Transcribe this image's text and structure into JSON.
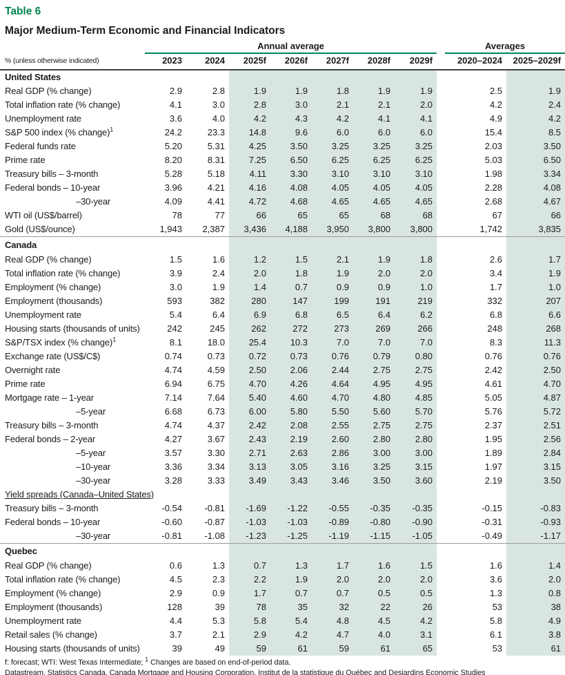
{
  "table_label": "Table 6",
  "title": "Major Medium-Term Economic and Financial Indicators",
  "colors": {
    "accent": "#00874E",
    "band": "#D9E6DF",
    "rule_dark": "#3f3f3f",
    "divider": "#9b9b9b"
  },
  "header": {
    "unit_label": "% (unless otherwise indicated)",
    "group_annual": "Annual average",
    "group_averages": "Averages",
    "years": [
      "2023",
      "2024",
      "2025f",
      "2026f",
      "2027f",
      "2028f",
      "2029f"
    ],
    "avg_columns": [
      "2020–2024",
      "2025–2029f"
    ]
  },
  "sections": [
    {
      "name": "United States",
      "divider": false,
      "subsection": false,
      "rows": [
        {
          "label": "Real GDP (% change)",
          "values": [
            "2.9",
            "2.8",
            "1.9",
            "1.9",
            "1.8",
            "1.9",
            "1.9",
            "2.5",
            "1.9"
          ]
        },
        {
          "label": "Total inflation rate (% change)",
          "values": [
            "4.1",
            "3.0",
            "2.8",
            "3.0",
            "2.1",
            "2.1",
            "2.0",
            "4.2",
            "2.4"
          ]
        },
        {
          "label": "Unemployment rate",
          "values": [
            "3.6",
            "4.0",
            "4.2",
            "4.3",
            "4.2",
            "4.1",
            "4.1",
            "4.9",
            "4.2"
          ]
        },
        {
          "label": "S&P 500 index (% change)",
          "sup": "1",
          "values": [
            "24.2",
            "23.3",
            "14.8",
            "9.6",
            "6.0",
            "6.0",
            "6.0",
            "15.4",
            "8.5"
          ]
        },
        {
          "label": "Federal funds rate",
          "values": [
            "5.20",
            "5.31",
            "4.25",
            "3.50",
            "3.25",
            "3.25",
            "3.25",
            "2.03",
            "3.50"
          ]
        },
        {
          "label": "Prime rate",
          "values": [
            "8.20",
            "8.31",
            "7.25",
            "6.50",
            "6.25",
            "6.25",
            "6.25",
            "5.03",
            "6.50"
          ]
        },
        {
          "label": "Treasury bills – 3-month",
          "values": [
            "5.28",
            "5.18",
            "4.11",
            "3.30",
            "3.10",
            "3.10",
            "3.10",
            "1.98",
            "3.34"
          ]
        },
        {
          "label": "Federal bonds – 10-year",
          "values": [
            "3.96",
            "4.21",
            "4.16",
            "4.08",
            "4.05",
            "4.05",
            "4.05",
            "2.28",
            "4.08"
          ]
        },
        {
          "label": "–30-year",
          "indent": true,
          "values": [
            "4.09",
            "4.41",
            "4.72",
            "4.68",
            "4.65",
            "4.65",
            "4.65",
            "2.68",
            "4.67"
          ]
        },
        {
          "label": "WTI oil (US$/barrel)",
          "values": [
            "78",
            "77",
            "66",
            "65",
            "65",
            "68",
            "68",
            "67",
            "66"
          ]
        },
        {
          "label": "Gold (US$/ounce)",
          "values": [
            "1,943",
            "2,387",
            "3,436",
            "4,188",
            "3,950",
            "3,800",
            "3,800",
            "1,742",
            "3,835"
          ]
        }
      ]
    },
    {
      "name": "Canada",
      "divider": true,
      "subsection": false,
      "rows": [
        {
          "label": "Real GDP (% change)",
          "values": [
            "1.5",
            "1.6",
            "1.2",
            "1.5",
            "2.1",
            "1.9",
            "1.8",
            "2.6",
            "1.7"
          ]
        },
        {
          "label": "Total inflation rate (% change)",
          "values": [
            "3.9",
            "2.4",
            "2.0",
            "1.8",
            "1.9",
            "2.0",
            "2.0",
            "3.4",
            "1.9"
          ]
        },
        {
          "label": "Employment (% change)",
          "values": [
            "3.0",
            "1.9",
            "1.4",
            "0.7",
            "0.9",
            "0.9",
            "1.0",
            "1.7",
            "1.0"
          ]
        },
        {
          "label": "Employment (thousands)",
          "values": [
            "593",
            "382",
            "280",
            "147",
            "199",
            "191",
            "219",
            "332",
            "207"
          ]
        },
        {
          "label": "Unemployment rate",
          "values": [
            "5.4",
            "6.4",
            "6.9",
            "6.8",
            "6.5",
            "6.4",
            "6.2",
            "6.8",
            "6.6"
          ]
        },
        {
          "label": "Housing starts (thousands of units)",
          "values": [
            "242",
            "245",
            "262",
            "272",
            "273",
            "269",
            "266",
            "248",
            "268"
          ]
        },
        {
          "label": "S&P/TSX index (% change)",
          "sup": "1",
          "values": [
            "8.1",
            "18.0",
            "25.4",
            "10.3",
            "7.0",
            "7.0",
            "7.0",
            "8.3",
            "11.3"
          ]
        },
        {
          "label": "Exchange rate (US$/C$)",
          "values": [
            "0.74",
            "0.73",
            "0.72",
            "0.73",
            "0.76",
            "0.79",
            "0.80",
            "0.76",
            "0.76"
          ]
        },
        {
          "label": "Overnight rate",
          "values": [
            "4.74",
            "4.59",
            "2.50",
            "2.06",
            "2.44",
            "2.75",
            "2.75",
            "2.42",
            "2.50"
          ]
        },
        {
          "label": "Prime rate",
          "values": [
            "6.94",
            "6.75",
            "4.70",
            "4.26",
            "4.64",
            "4.95",
            "4.95",
            "4.61",
            "4.70"
          ]
        },
        {
          "label": "Mortgage rate – 1-year",
          "values": [
            "7.14",
            "7.64",
            "5.40",
            "4.60",
            "4.70",
            "4.80",
            "4.85",
            "5.05",
            "4.87"
          ]
        },
        {
          "label": "–5-year",
          "indent": true,
          "values": [
            "6.68",
            "6.73",
            "6.00",
            "5.80",
            "5.50",
            "5.60",
            "5.70",
            "5.76",
            "5.72"
          ]
        },
        {
          "label": "Treasury bills – 3-month",
          "values": [
            "4.74",
            "4.37",
            "2.42",
            "2.08",
            "2.55",
            "2.75",
            "2.75",
            "2.37",
            "2.51"
          ]
        },
        {
          "label": "Federal bonds – 2-year",
          "values": [
            "4.27",
            "3.67",
            "2.43",
            "2.19",
            "2.60",
            "2.80",
            "2.80",
            "1.95",
            "2.56"
          ]
        },
        {
          "label": "–5-year",
          "indent": true,
          "values": [
            "3.57",
            "3.30",
            "2.71",
            "2.63",
            "2.86",
            "3.00",
            "3.00",
            "1.89",
            "2.84"
          ]
        },
        {
          "label": "–10-year",
          "indent": true,
          "values": [
            "3.36",
            "3.34",
            "3.13",
            "3.05",
            "3.16",
            "3.25",
            "3.15",
            "1.97",
            "3.15"
          ]
        },
        {
          "label": "–30-year",
          "indent": true,
          "values": [
            "3.28",
            "3.33",
            "3.49",
            "3.43",
            "3.46",
            "3.50",
            "3.60",
            "2.19",
            "3.50"
          ]
        }
      ]
    },
    {
      "name": "Yield spreads (Canada–United States)",
      "divider": false,
      "subsection": true,
      "rows": [
        {
          "label": "Treasury bills – 3-month",
          "values": [
            "-0.54",
            "-0.81",
            "-1.69",
            "-1.22",
            "-0.55",
            "-0.35",
            "-0.35",
            "-0.15",
            "-0.83"
          ]
        },
        {
          "label": "Federal bonds – 10-year",
          "values": [
            "-0.60",
            "-0.87",
            "-1.03",
            "-1.03",
            "-0.89",
            "-0.80",
            "-0.90",
            "-0.31",
            "-0.93"
          ]
        },
        {
          "label": "–30-year",
          "indent": true,
          "values": [
            "-0.81",
            "-1.08",
            "-1.23",
            "-1.25",
            "-1.19",
            "-1.15",
            "-1.05",
            "-0.49",
            "-1.17"
          ]
        }
      ]
    },
    {
      "name": "Quebec",
      "divider": true,
      "subsection": false,
      "rows": [
        {
          "label": "Real GDP (% change)",
          "values": [
            "0.6",
            "1.3",
            "0.7",
            "1.3",
            "1.7",
            "1.6",
            "1.5",
            "1.6",
            "1.4"
          ]
        },
        {
          "label": "Total inflation rate (% change)",
          "values": [
            "4.5",
            "2.3",
            "2.2",
            "1.9",
            "2.0",
            "2.0",
            "2.0",
            "3.6",
            "2.0"
          ]
        },
        {
          "label": "Employment (% change)",
          "values": [
            "2.9",
            "0.9",
            "1.7",
            "0.7",
            "0.7",
            "0.5",
            "0.5",
            "1.3",
            "0.8"
          ]
        },
        {
          "label": "Employment (thousands)",
          "values": [
            "128",
            "39",
            "78",
            "35",
            "32",
            "22",
            "26",
            "53",
            "38"
          ]
        },
        {
          "label": "Unemployment rate",
          "values": [
            "4.4",
            "5.3",
            "5.8",
            "5.4",
            "4.8",
            "4.5",
            "4.2",
            "5.8",
            "4.9"
          ]
        },
        {
          "label": "Retail sales (% change)",
          "values": [
            "3.7",
            "2.1",
            "2.9",
            "4.2",
            "4.7",
            "4.0",
            "3.1",
            "6.1",
            "3.8"
          ]
        },
        {
          "label": "Housing starts (thousands of units)",
          "values": [
            "39",
            "49",
            "59",
            "61",
            "59",
            "61",
            "65",
            "53",
            "61"
          ]
        }
      ]
    }
  ],
  "footnote": {
    "prefix": "f: forecast; WTI: West Texas Intermediate; ",
    "sup": "1",
    "suffix": " Changes are based on end-of-period data."
  },
  "source": "Datastream, Statistics Canada, Canada Mortgage and Housing Corporation, Institut de la statistique du Québec and Desjardins Economic Studies"
}
